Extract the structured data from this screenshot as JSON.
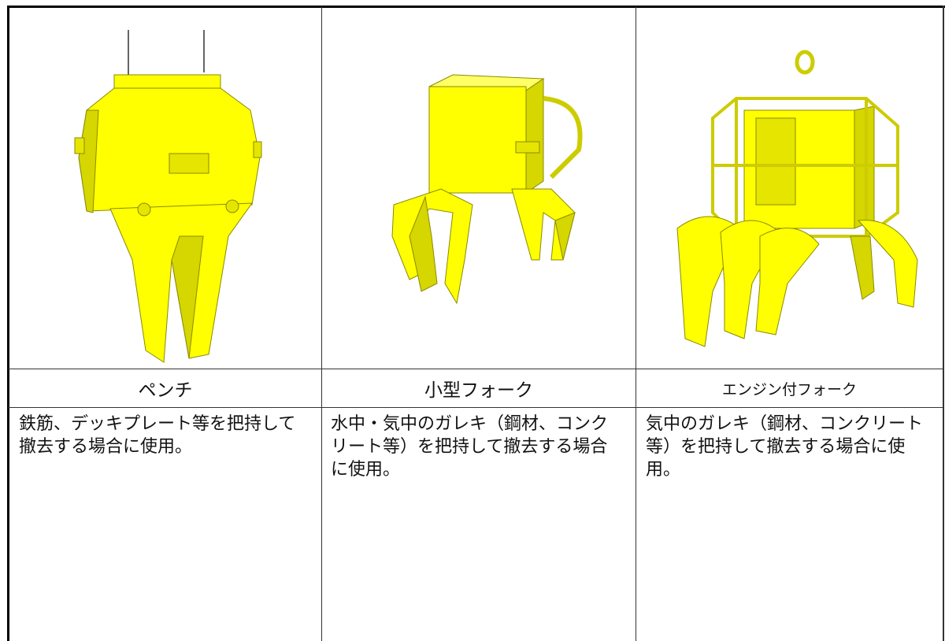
{
  "table": {
    "columns": [
      {
        "name": "ペンチ",
        "description": "鉄筋、デッキプレート等を把持して撤去する場合に使用。"
      },
      {
        "name": "小型フォーク",
        "description": "水中・気中のガレキ（鋼材、コンクリート等）を把持して撤去する場合に使用。"
      },
      {
        "name": "エンジン付フォーク",
        "description": "気中のガレキ（鋼材、コンクリート等）を把持して撤去する場合に使用。"
      }
    ]
  }
}
